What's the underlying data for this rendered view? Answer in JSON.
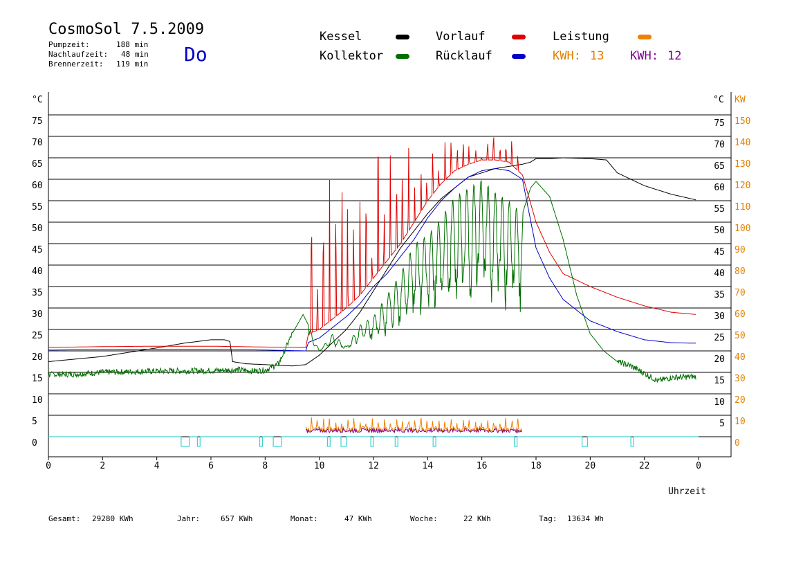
{
  "header": {
    "title": "CosmoSol 7.5.2009",
    "day": "Do",
    "info": [
      {
        "label": "Pumpzeit:",
        "value": "188 min"
      },
      {
        "label": "Nachlaufzeit:",
        "value": "48 min"
      },
      {
        "label": "Brennerzeit:",
        "value": "119 min"
      }
    ]
  },
  "legend": {
    "kessel": {
      "label": "Kessel",
      "color": "#000000"
    },
    "vorlauf": {
      "label": "Vorlauf",
      "color": "#e00000"
    },
    "leistung": {
      "label": "Leistung",
      "color": "#f08000"
    },
    "kollektor": {
      "label": "Kollektor",
      "color": "#007000"
    },
    "ruecklauf": {
      "label": "Rücklauf",
      "color": "#0000cc"
    },
    "kwh1": {
      "label": "KWH:",
      "value": "13",
      "color": "#e08000"
    },
    "kwh2": {
      "label": "KWH:",
      "value": "12",
      "color": "#800090"
    }
  },
  "footer": {
    "gesamt": {
      "label": "Gesamt:",
      "value": "29280 KWh"
    },
    "jahr": {
      "label": "Jahr:",
      "value": "657 KWh"
    },
    "monat": {
      "label": "Monat:",
      "value": "47 KWh"
    },
    "woche": {
      "label": "Woche:",
      "value": "22 KWh"
    },
    "tag": {
      "label": "Tag:",
      "value": "13634 Wh"
    }
  },
  "chart_data": {
    "type": "line",
    "xlabel": "Uhrzeit",
    "ylabel_left": "°C",
    "ylabel_right": "°C",
    "ylabel_right2": "KW",
    "xlim": [
      0,
      24
    ],
    "ylim": [
      0,
      80
    ],
    "x_ticks": [
      "0",
      "2",
      "4",
      "6",
      "8",
      "10",
      "12",
      "14",
      "16",
      "18",
      "20",
      "22",
      "0"
    ],
    "y_ticks_left": [
      "0",
      "5",
      "10",
      "15",
      "20",
      "25",
      "30",
      "35",
      "40",
      "45",
      "50",
      "55",
      "60",
      "65",
      "70",
      "75"
    ],
    "y_ticks_right": [
      "5",
      "10",
      "15",
      "20",
      "25",
      "30",
      "35",
      "40",
      "45",
      "50",
      "55",
      "60",
      "65",
      "70",
      "75"
    ],
    "y_ticks_kw": [
      "0",
      "10",
      "20",
      "30",
      "40",
      "50",
      "60",
      "70",
      "80",
      "90",
      "100",
      "110",
      "120",
      "130",
      "140",
      "150"
    ],
    "grid": true,
    "series": [
      {
        "name": "Kessel",
        "color": "#000000",
        "points": [
          [
            0,
            17.5
          ],
          [
            2,
            18.7
          ],
          [
            4,
            20.7
          ],
          [
            5,
            21.8
          ],
          [
            6,
            22.6
          ],
          [
            6.5,
            22.6
          ],
          [
            6.7,
            22.2
          ],
          [
            6.8,
            17.5
          ],
          [
            7.3,
            17
          ],
          [
            8,
            16.8
          ],
          [
            9,
            16.5
          ],
          [
            9.5,
            16.8
          ],
          [
            10,
            19
          ],
          [
            10.5,
            22
          ],
          [
            11,
            25
          ],
          [
            11.5,
            29
          ],
          [
            12,
            34
          ],
          [
            12.5,
            39
          ],
          [
            13,
            44
          ],
          [
            13.5,
            48
          ],
          [
            14,
            52
          ],
          [
            14.5,
            55.5
          ],
          [
            15,
            58
          ],
          [
            15.5,
            60.5
          ],
          [
            16,
            61.5
          ],
          [
            16.5,
            62.5
          ],
          [
            17,
            63
          ],
          [
            17.5,
            63.5
          ],
          [
            17.8,
            64
          ],
          [
            18,
            64.8
          ],
          [
            18.5,
            64.8
          ],
          [
            19,
            65
          ],
          [
            20,
            64.8
          ],
          [
            20.6,
            64.5
          ],
          [
            21,
            61.5
          ],
          [
            22,
            58.5
          ],
          [
            23,
            56.5
          ],
          [
            23.9,
            55.2
          ]
        ]
      },
      {
        "name": "Vorlauf",
        "color": "#e00000",
        "points": [
          [
            0,
            20.8
          ],
          [
            2,
            21
          ],
          [
            4,
            21.1
          ],
          [
            6,
            21.1
          ],
          [
            8,
            20.9
          ],
          [
            9.5,
            20.8
          ],
          [
            9.6,
            24
          ],
          [
            10,
            25
          ],
          [
            10.5,
            27.5
          ],
          [
            11,
            30
          ],
          [
            11.5,
            33
          ],
          [
            12,
            37
          ],
          [
            12.5,
            41
          ],
          [
            13,
            45
          ],
          [
            13.5,
            50
          ],
          [
            14,
            55
          ],
          [
            14.5,
            59
          ],
          [
            15,
            62
          ],
          [
            15.5,
            63.5
          ],
          [
            16,
            64.5
          ],
          [
            16.5,
            64.5
          ],
          [
            17,
            64
          ],
          [
            17.5,
            61
          ],
          [
            18,
            50
          ],
          [
            18.5,
            43
          ],
          [
            19,
            38
          ],
          [
            20,
            35
          ],
          [
            21,
            32.5
          ],
          [
            22,
            30.5
          ],
          [
            23,
            29
          ],
          [
            23.9,
            28.5
          ]
        ]
      },
      {
        "name": "Rücklauf",
        "color": "#0000cc",
        "points": [
          [
            0,
            20.2
          ],
          [
            2,
            20.3
          ],
          [
            4,
            20.4
          ],
          [
            6,
            20.4
          ],
          [
            8,
            20.2
          ],
          [
            9.5,
            20
          ],
          [
            9.6,
            22
          ],
          [
            10,
            23
          ],
          [
            10.5,
            25.5
          ],
          [
            11,
            28
          ],
          [
            11.5,
            31
          ],
          [
            12,
            35
          ],
          [
            12.5,
            38
          ],
          [
            13,
            42
          ],
          [
            13.5,
            46
          ],
          [
            14,
            51
          ],
          [
            14.5,
            55
          ],
          [
            15,
            58
          ],
          [
            15.5,
            60.5
          ],
          [
            16,
            62
          ],
          [
            16.5,
            62.5
          ],
          [
            17,
            62
          ],
          [
            17.5,
            60
          ],
          [
            18,
            44
          ],
          [
            18.5,
            37
          ],
          [
            19,
            32
          ],
          [
            20,
            27
          ],
          [
            21,
            24.5
          ],
          [
            22,
            22.6
          ],
          [
            23,
            21.9
          ],
          [
            23.9,
            21.8
          ]
        ]
      },
      {
        "name": "Kollektor",
        "color": "#007000",
        "points": [
          [
            0,
            14.5
          ],
          [
            1,
            14.6
          ],
          [
            2,
            15
          ],
          [
            4,
            15.3
          ],
          [
            6,
            15.4
          ],
          [
            7,
            15.6
          ],
          [
            7.5,
            15.3
          ],
          [
            8,
            15.5
          ],
          [
            8.5,
            17
          ],
          [
            9,
            24
          ],
          [
            9.4,
            28.5
          ],
          [
            9.6,
            26
          ],
          [
            10,
            20
          ],
          [
            10.5,
            24
          ],
          [
            11,
            21
          ],
          [
            11.5,
            26
          ],
          [
            12,
            28
          ],
          [
            12.5,
            33
          ],
          [
            13,
            38
          ],
          [
            13.5,
            45
          ],
          [
            14,
            47
          ],
          [
            14.5,
            51
          ],
          [
            15,
            56
          ],
          [
            15.5,
            58
          ],
          [
            16,
            60
          ],
          [
            16.5,
            57
          ],
          [
            17,
            55
          ],
          [
            17.5,
            52
          ],
          [
            17.8,
            58
          ],
          [
            18,
            59.5
          ],
          [
            18.5,
            56
          ],
          [
            19,
            46
          ],
          [
            19.5,
            33
          ],
          [
            20,
            24
          ],
          [
            20.5,
            20
          ],
          [
            21,
            17.5
          ],
          [
            21.5,
            16.5
          ],
          [
            22,
            14.8
          ],
          [
            22.5,
            13
          ],
          [
            23,
            13.8
          ],
          [
            23.9,
            14
          ]
        ]
      }
    ],
    "oscillation_bands": [
      {
        "series": "Vorlauf",
        "from": 9.6,
        "to": 17.5,
        "amplitude_max": 71
      },
      {
        "series": "Kollektor",
        "from": 9.6,
        "to": 17.5,
        "amplitude_min": 20
      }
    ],
    "bottom_markers": {
      "color": "#40d0d0",
      "pulses": [
        [
          4.9,
          5.2
        ],
        [
          5.5,
          5.6
        ],
        [
          7.8,
          7.9
        ],
        [
          8.3,
          8.6
        ],
        [
          10.3,
          10.4
        ],
        [
          10.8,
          11.0
        ],
        [
          11.9,
          12.0
        ],
        [
          12.8,
          12.9
        ],
        [
          14.2,
          14.3
        ],
        [
          17.2,
          17.3
        ],
        [
          19.7,
          19.9
        ],
        [
          21.5,
          21.6
        ]
      ]
    }
  }
}
